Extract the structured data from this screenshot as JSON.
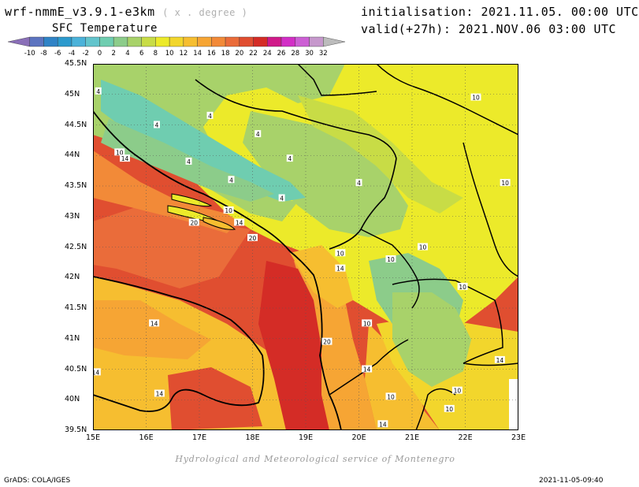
{
  "header": {
    "model": "wrf-nmmE_v3.9.1-e3km",
    "units": "( x . degree )",
    "variable": "SFC Temperature",
    "initialisation": "initialisation: 2021.11.05. 00:00 UTC",
    "valid": "valid(+27h): 2021.NOV.06 03:00 UTC"
  },
  "colorbar": {
    "labels": [
      "-10",
      "-8",
      "-6",
      "-4",
      "-2",
      "0",
      "2",
      "4",
      "6",
      "8",
      "10",
      "12",
      "14",
      "16",
      "18",
      "20",
      "22",
      "24",
      "26",
      "28",
      "30",
      "32"
    ],
    "colors": [
      "#8a6fb8",
      "#5c74c0",
      "#2f83c6",
      "#2c9acd",
      "#4bb2d9",
      "#62c4cc",
      "#6fcdb0",
      "#8ccc8a",
      "#a8d26a",
      "#c8dc46",
      "#ecea2a",
      "#f2d62c",
      "#f6be30",
      "#f6a534",
      "#f28a38",
      "#ea6c3a",
      "#e04e30",
      "#d42c26",
      "#d01a8a",
      "#d22ec6",
      "#cc5fd4",
      "#c698cc",
      "#bcbcbc"
    ]
  },
  "map": {
    "x_ticks": [
      "15E",
      "16E",
      "17E",
      "18E",
      "19E",
      "20E",
      "21E",
      "22E",
      "23E"
    ],
    "y_ticks": [
      "45.5N",
      "45N",
      "44.5N",
      "44N",
      "43.5N",
      "43N",
      "42.5N",
      "42N",
      "41.5N",
      "41N",
      "40.5N",
      "40N",
      "39.5N"
    ],
    "extent": {
      "lon": [
        15,
        23
      ],
      "lat": [
        39.5,
        45.5
      ]
    },
    "contour_levels_shown": [
      "4",
      "10",
      "14",
      "20"
    ],
    "contour_labels": [
      {
        "text": "4",
        "lon": 15.1,
        "lat": 45.05
      },
      {
        "text": "4",
        "lon": 17.2,
        "lat": 44.65
      },
      {
        "text": "4",
        "lon": 16.2,
        "lat": 44.5
      },
      {
        "text": "4",
        "lon": 18.1,
        "lat": 44.35
      },
      {
        "text": "4",
        "lon": 16.8,
        "lat": 43.9
      },
      {
        "text": "4",
        "lon": 17.6,
        "lat": 43.6
      },
      {
        "text": "4",
        "lon": 18.7,
        "lat": 43.95
      },
      {
        "text": "4",
        "lon": 18.55,
        "lat": 43.3
      },
      {
        "text": "4",
        "lon": 20.0,
        "lat": 43.55
      },
      {
        "text": "10",
        "lon": 15.5,
        "lat": 44.05
      },
      {
        "text": "14",
        "lon": 15.6,
        "lat": 43.95
      },
      {
        "text": "10",
        "lon": 17.55,
        "lat": 43.1
      },
      {
        "text": "14",
        "lon": 17.75,
        "lat": 42.9
      },
      {
        "text": "20",
        "lon": 16.9,
        "lat": 42.9
      },
      {
        "text": "20",
        "lon": 18.0,
        "lat": 42.65
      },
      {
        "text": "10",
        "lon": 22.2,
        "lat": 44.95
      },
      {
        "text": "10",
        "lon": 22.75,
        "lat": 43.55
      },
      {
        "text": "10",
        "lon": 19.65,
        "lat": 42.4
      },
      {
        "text": "10",
        "lon": 20.6,
        "lat": 42.3
      },
      {
        "text": "10",
        "lon": 21.2,
        "lat": 42.5
      },
      {
        "text": "14",
        "lon": 19.65,
        "lat": 42.15
      },
      {
        "text": "10",
        "lon": 21.95,
        "lat": 41.85
      },
      {
        "text": "10",
        "lon": 20.15,
        "lat": 41.25
      },
      {
        "text": "14",
        "lon": 16.15,
        "lat": 41.25
      },
      {
        "text": "20",
        "lon": 19.4,
        "lat": 40.95
      },
      {
        "text": "14",
        "lon": 20.15,
        "lat": 40.5
      },
      {
        "text": "14",
        "lon": 15.05,
        "lat": 40.45
      },
      {
        "text": "14",
        "lon": 16.25,
        "lat": 40.1
      },
      {
        "text": "14",
        "lon": 22.65,
        "lat": 40.65
      },
      {
        "text": "10",
        "lon": 21.85,
        "lat": 40.15
      },
      {
        "text": "10",
        "lon": 20.6,
        "lat": 40.05
      },
      {
        "text": "10",
        "lon": 21.7,
        "lat": 39.85
      },
      {
        "text": "14",
        "lon": 20.45,
        "lat": 39.6
      }
    ]
  },
  "footer": {
    "credit": "Hydrological and Meteorological service of Montenegro",
    "software": "GrADS: COLA/IGES",
    "timestamp": "2021-11-05-09:40"
  }
}
